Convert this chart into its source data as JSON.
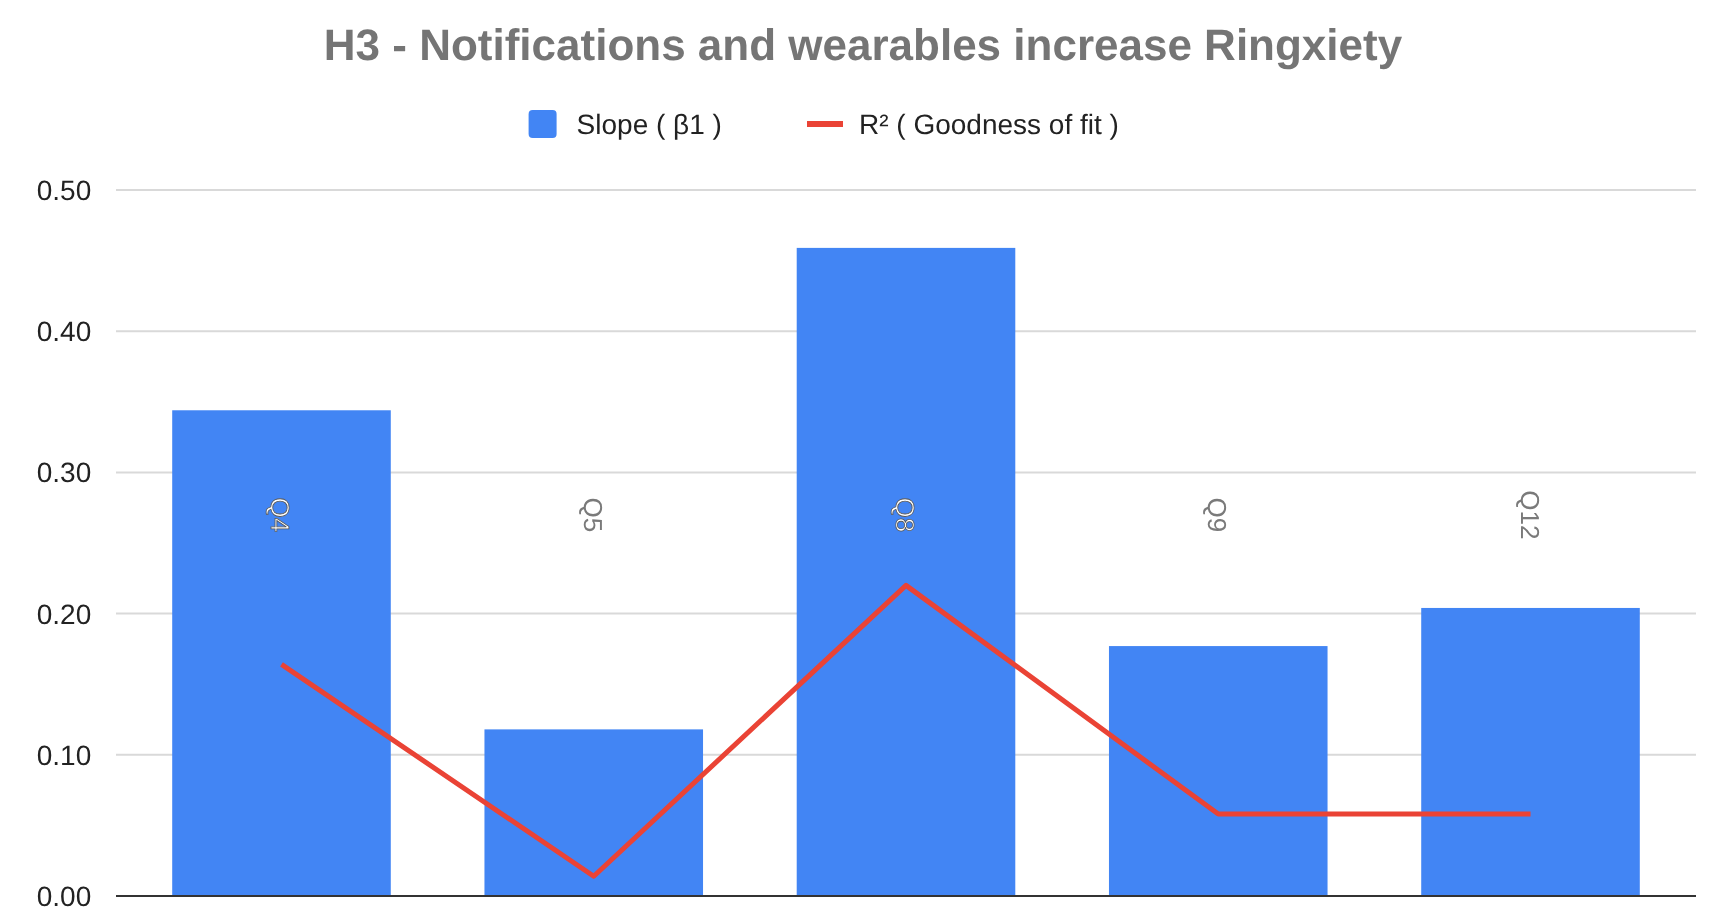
{
  "chart_data": {
    "type": "bar",
    "title": "H3 - Notifications and wearables increase Ringxiety",
    "categories": [
      "Q4",
      "Q5",
      "Q8",
      "Q9",
      "Q12"
    ],
    "series": [
      {
        "name": "Slope ( β1 )",
        "color": "#4285f4",
        "values": [
          0.344,
          0.118,
          0.459,
          0.177,
          0.204
        ]
      },
      {
        "name": "R² ( Goodness of fit )",
        "type": "line",
        "color": "#ea4335",
        "values": [
          0.164,
          0.014,
          0.22,
          0.058,
          0.058
        ]
      }
    ],
    "ylim": [
      0,
      0.5
    ],
    "yticks": [
      {
        "value": 0,
        "label": "0.00"
      },
      {
        "value": 0.1,
        "label": "0.10"
      },
      {
        "value": 0.2,
        "label": "0.20"
      },
      {
        "value": 0.3,
        "label": "0.30"
      },
      {
        "value": 0.4,
        "label": "0.40"
      },
      {
        "value": 0.5,
        "label": "0.50"
      }
    ],
    "grid": "y",
    "legend": "top",
    "marker": "none",
    "line_style": "solid"
  }
}
